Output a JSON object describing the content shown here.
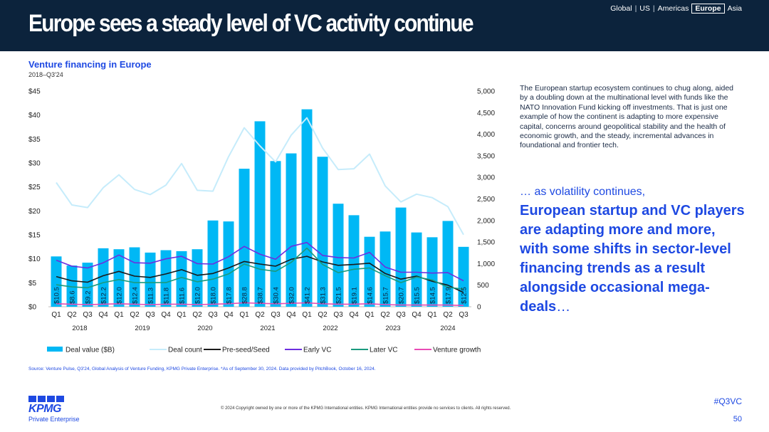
{
  "header": {
    "title": "Europe sees a steady level of VC activity continue",
    "regions": [
      "Global",
      "US",
      "Americas",
      "Europe",
      "Asia"
    ],
    "active_region": "Europe"
  },
  "chart_heading": {
    "title": "Venture financing in Europe",
    "subtitle": "2018–Q3'24"
  },
  "chart_data": {
    "type": "bar",
    "title": "Venture financing in Europe",
    "subtitle": "2018–Q3'24",
    "quarters": [
      "Q1",
      "Q2",
      "Q3",
      "Q4",
      "Q1",
      "Q2",
      "Q3",
      "Q4",
      "Q1",
      "Q2",
      "Q3",
      "Q4",
      "Q1",
      "Q2",
      "Q3",
      "Q4",
      "Q1",
      "Q2",
      "Q3",
      "Q4",
      "Q1",
      "Q2",
      "Q3",
      "Q4",
      "Q1",
      "Q2",
      "Q3"
    ],
    "years": [
      {
        "label": "2018",
        "start": 0,
        "count": 4
      },
      {
        "label": "2019",
        "start": 4,
        "count": 4
      },
      {
        "label": "2020",
        "start": 8,
        "count": 4
      },
      {
        "label": "2021",
        "start": 12,
        "count": 4
      },
      {
        "label": "2022",
        "start": 16,
        "count": 4
      },
      {
        "label": "2023",
        "start": 20,
        "count": 4
      },
      {
        "label": "2024",
        "start": 24,
        "count": 3
      }
    ],
    "left_axis": {
      "min": 0,
      "max": 45,
      "step": 5,
      "ticks": [
        "$0",
        "$5",
        "$10",
        "$15",
        "$20",
        "$25",
        "$30",
        "$35",
        "$40",
        "$45"
      ]
    },
    "right_axis": {
      "min": 0,
      "max": 5000,
      "step": 500,
      "ticks": [
        "0",
        "500",
        "1,000",
        "1,500",
        "2,000",
        "2,500",
        "3,000",
        "3,500",
        "4,000",
        "4,500",
        "5,000"
      ]
    },
    "bar_series": {
      "name": "Deal value ($B)",
      "color": "#00b8f5",
      "values": [
        10.5,
        8.6,
        9.2,
        12.2,
        12.0,
        12.4,
        11.3,
        11.8,
        11.6,
        12.0,
        18.0,
        17.8,
        28.8,
        38.7,
        30.4,
        32.0,
        41.2,
        31.3,
        21.5,
        19.1,
        14.6,
        15.7,
        20.7,
        15.5,
        14.5,
        17.9,
        12.5
      ],
      "labels": [
        "$10.5",
        "$8.6",
        "$9.2",
        "$12.2",
        "$12.0",
        "$12.4",
        "$11.3",
        "$11.8",
        "$11.6",
        "$12.0",
        "$18.0",
        "$17.8",
        "$28.8",
        "$38.7",
        "$30.4",
        "$32.0",
        "$41.2",
        "$31.3",
        "$21.5",
        "$19.1",
        "$14.6",
        "$15.7",
        "$20.7",
        "$15.5",
        "$14.5",
        "$17.9",
        "$12.5"
      ]
    },
    "line_series": [
      {
        "name": "Deal count",
        "color": "#c6ecfb",
        "width": 2,
        "values": [
          2880,
          2360,
          2300,
          2760,
          3060,
          2720,
          2600,
          2820,
          3320,
          2700,
          2680,
          3480,
          4150,
          3730,
          3360,
          3980,
          4380,
          3680,
          3180,
          3200,
          3540,
          2800,
          2430,
          2610,
          2530,
          2320,
          1670
        ]
      },
      {
        "name": "Pre-seed/Seed",
        "color": "#1a1a1a",
        "width": 1.6,
        "values": [
          700,
          600,
          570,
          720,
          820,
          710,
          680,
          760,
          860,
          730,
          770,
          900,
          1050,
          990,
          940,
          1100,
          1170,
          1040,
          960,
          980,
          1010,
          770,
          640,
          710,
          590,
          500,
          330
        ]
      },
      {
        "name": "Early VC",
        "color": "#6d2ee0",
        "width": 1.6,
        "values": [
          1080,
          940,
          900,
          1020,
          1200,
          1020,
          1010,
          1110,
          1170,
          1000,
          990,
          1160,
          1400,
          1220,
          1100,
          1400,
          1490,
          1190,
          1140,
          1130,
          1260,
          920,
          800,
          800,
          780,
          790,
          600
        ]
      },
      {
        "name": "Later VC",
        "color": "#1a9a7e",
        "width": 1.6,
        "values": [
          510,
          460,
          440,
          560,
          630,
          560,
          560,
          560,
          680,
          580,
          640,
          760,
          990,
          870,
          820,
          1030,
          1360,
          980,
          790,
          870,
          900,
          720,
          560,
          690,
          620,
          450,
          410
        ]
      },
      {
        "name": "Venture growth",
        "color": "#e94bb5",
        "width": 1.6,
        "values": [
          70,
          60,
          50,
          60,
          70,
          60,
          50,
          60,
          60,
          50,
          60,
          70,
          90,
          80,
          70,
          80,
          90,
          70,
          60,
          60,
          70,
          50,
          40,
          40,
          40,
          40,
          30
        ]
      }
    ],
    "legend": [
      "Deal value ($B)",
      "Deal count",
      "Pre-seed/Seed",
      "Early VC",
      "Later VC",
      "Venture growth"
    ],
    "legend_position": "bottom"
  },
  "body_text": "The European startup ecosystem continues to chug along, aided by a doubling down at the multinational level with funds like the NATO Innovation Fund kicking off investments. That is just one example of how the continent is adapting to more expensive capital, concerns around geopolitical stability and the health of economic growth, and the steady, incremental advances in foundational and frontier tech.",
  "highlight": {
    "lead": "… as volatility continues,",
    "main": "European startup and VC players are adapting more and more, with some shifts in sector-level financing trends as a result alongside occasional mega-deals",
    "trail": "…"
  },
  "footer": {
    "source": "Source: Venture Pulse, Q3'24, Global Analysis of Venture Funding, KPMG Private Enterprise. *As of September 30, 2024. Data provided by PitchBook, October 16, 2024.",
    "copyright": "© 2024 Copyright owned by one or more of the KPMG International entities. KPMG International entities provide no services to clients. All rights reserved.",
    "logo_text": "KPMG",
    "logo_sub": "Private Enterprise",
    "hashtag": "#Q3VC",
    "page": "50"
  }
}
